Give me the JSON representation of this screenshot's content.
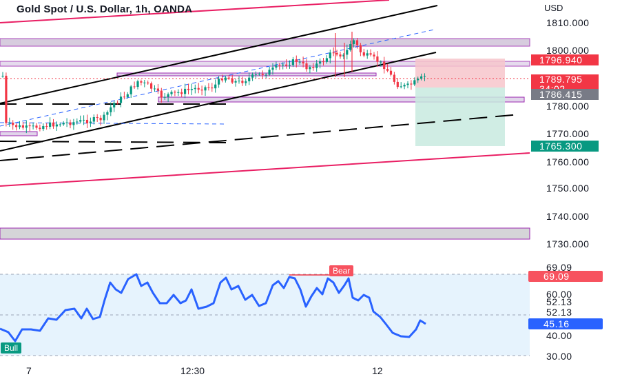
{
  "chart": {
    "title": "Gold Spot / U.S. Dollar, 1h, OANDA",
    "currency": "USD"
  },
  "price_axis": {
    "labels": [
      "1810.000",
      "1800.000",
      "1780.000",
      "1770.000",
      "1760.000",
      "1750.000",
      "1740.000",
      "1730.000"
    ]
  },
  "tags": {
    "stop": "1796.940",
    "current_price": "1789.795",
    "countdown": "34:02",
    "entry": "1786.415",
    "target": "1765.300"
  },
  "rsi": {
    "scale_labels": [
      "69.09",
      "60.00",
      "52.13",
      "52.13",
      "40.00",
      "30.00"
    ],
    "upper_tag": "69.09",
    "current_tag": "45.16",
    "bear_label": "Bear",
    "bull_label": "Bull"
  },
  "time_axis": {
    "labels": [
      "7",
      "12:30",
      "12"
    ]
  },
  "colors": {
    "bull": "#089981",
    "bear": "#f23645",
    "rsi_line": "#2962ff",
    "channel_red": "#e91e63",
    "zone_purple": "#9c27b0",
    "entry_gray": "#787b86",
    "target_green": "#089981",
    "stop_red": "#f23645"
  }
}
